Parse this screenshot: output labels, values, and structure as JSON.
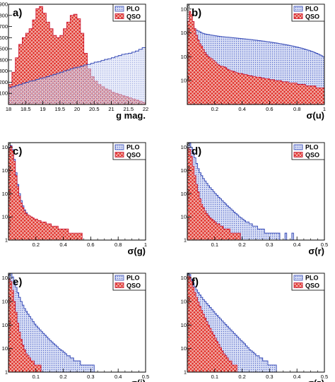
{
  "figure": {
    "colors": {
      "plo": "#3b4fb8",
      "plo_fill": "#9aa8dc",
      "qso": "#c8102e",
      "qso_fill": "#e2302a",
      "qso_hatch": "#f3c7c0"
    },
    "legend": {
      "plo_label": "PLO",
      "qso_label": "QSO"
    }
  },
  "chart_data": [
    {
      "type": "bar",
      "panel": "a)",
      "xlabel": "g mag.",
      "xlim": [
        18,
        22
      ],
      "ylim": [
        0,
        900
      ],
      "log_y": false,
      "x_ticks": [
        "18",
        "18.5",
        "19",
        "19.5",
        "20",
        "20.5",
        "21",
        "21.5",
        "22"
      ],
      "y_ticks": [
        "100",
        "200",
        "300",
        "400",
        "500",
        "600",
        "700",
        "800",
        "900"
      ],
      "bin_start": 18,
      "bin_width": 0.1,
      "series": [
        {
          "name": "PLO",
          "values": [
            150,
            160,
            170,
            180,
            190,
            200,
            210,
            215,
            225,
            235,
            240,
            250,
            260,
            270,
            280,
            290,
            300,
            310,
            320,
            330,
            335,
            345,
            355,
            360,
            370,
            380,
            385,
            395,
            405,
            410,
            420,
            430,
            440,
            450,
            455,
            460,
            470,
            480,
            495,
            510
          ]
        },
        {
          "name": "QSO",
          "values": [
            180,
            290,
            420,
            540,
            600,
            640,
            680,
            760,
            860,
            880,
            820,
            740,
            680,
            620,
            600,
            620,
            680,
            740,
            800,
            810,
            770,
            640,
            460,
            320,
            250,
            210,
            180,
            160,
            140,
            130,
            110,
            100,
            90,
            80,
            70,
            60,
            50,
            40,
            30,
            20
          ]
        }
      ]
    },
    {
      "type": "bar",
      "panel": "b)",
      "xlabel": "σ(u)",
      "xlim": [
        0,
        1
      ],
      "log_y": true,
      "log_range": [
        0,
        4.2
      ],
      "x_ticks": [
        "0.2",
        "0.4",
        "0.6",
        "0.8",
        "1"
      ],
      "y_ticks": [
        "10",
        "10",
        "10",
        "10"
      ],
      "y_tick_exps": [
        "1",
        "2",
        "3",
        "4"
      ],
      "bin_width": 0.0125,
      "series": [
        {
          "name": "PLO",
          "values": [
            400,
            1200,
            2500,
            1800,
            1500,
            1300,
            1200,
            1100,
            1000,
            950,
            900,
            870,
            850,
            820,
            800,
            780,
            760,
            740,
            720,
            700,
            690,
            680,
            670,
            660,
            650,
            640,
            630,
            620,
            610,
            600,
            590,
            580,
            570,
            560,
            550,
            540,
            530,
            520,
            510,
            500,
            490,
            480,
            470,
            460,
            450,
            440,
            430,
            420,
            410,
            400,
            390,
            380,
            370,
            360,
            350,
            340,
            330,
            320,
            310,
            300,
            290,
            280,
            270,
            260,
            250,
            240,
            230,
            220,
            210,
            200,
            190,
            180,
            170,
            160,
            150,
            140,
            130,
            120,
            110,
            100
          ]
        },
        {
          "name": "QSO",
          "values": [
            3000,
            8000,
            6000,
            3000,
            1500,
            800,
            500,
            350,
            280,
            200,
            150,
            120,
            100,
            90,
            80,
            70,
            60,
            50,
            45,
            40,
            40,
            38,
            35,
            30,
            28,
            26,
            25,
            24,
            22,
            21,
            20,
            20,
            19,
            18,
            18,
            17,
            16,
            16,
            15,
            15,
            14,
            14,
            14,
            13,
            13,
            12,
            12,
            12,
            11,
            11,
            11,
            10,
            10,
            10,
            10,
            9,
            9,
            9,
            9,
            8,
            8,
            8,
            8,
            8,
            7,
            7,
            7,
            7,
            7,
            6,
            6,
            6,
            6,
            6,
            6,
            5,
            5,
            5,
            5,
            5
          ]
        }
      ]
    },
    {
      "type": "bar",
      "panel": "c)",
      "xlabel": "σ(g)",
      "xlim": [
        0,
        1
      ],
      "log_y": true,
      "log_range": [
        0,
        4.2
      ],
      "x_ticks": [
        "0.2",
        "0.4",
        "0.6",
        "0.8",
        "1"
      ],
      "y_ticks": [
        "1",
        "10",
        "10",
        "10",
        "10"
      ],
      "y_tick_exps": [
        "",
        "",
        "2",
        "3",
        "4"
      ],
      "bin_width": 0.0125,
      "series": [
        {
          "name": "PLO",
          "values": [
            10000,
            12000,
            8000,
            3000,
            800,
            250,
            100,
            50,
            30,
            20,
            15,
            12,
            10,
            8,
            7,
            6,
            5,
            5,
            4,
            4,
            3,
            3,
            3,
            3,
            2,
            2,
            2,
            2,
            2,
            2,
            2,
            2,
            2,
            2,
            1,
            1,
            1,
            1,
            1,
            1,
            1,
            1,
            1,
            1,
            1,
            0,
            0,
            0,
            0,
            0,
            0,
            0,
            0,
            0,
            0,
            0,
            0,
            0,
            0,
            0,
            1,
            0,
            0,
            0,
            0,
            0,
            0,
            0,
            0,
            0,
            0,
            0,
            0,
            0,
            0,
            0,
            0,
            0,
            0,
            0
          ]
        },
        {
          "name": "QSO",
          "values": [
            9000,
            11000,
            7000,
            2500,
            600,
            200,
            80,
            40,
            25,
            18,
            14,
            12,
            11,
            10,
            9,
            8,
            8,
            7,
            7,
            6,
            6,
            6,
            5,
            5,
            5,
            4,
            4,
            4,
            4,
            3,
            3,
            3,
            3,
            3,
            3,
            2,
            2,
            2,
            2,
            2,
            2,
            2,
            2,
            1,
            1,
            1,
            1,
            1,
            1,
            1,
            1,
            1,
            0,
            0,
            0,
            0,
            0,
            0,
            0,
            0,
            0,
            0,
            0,
            0,
            0,
            0,
            0,
            0,
            0,
            0,
            0,
            0,
            0,
            0,
            0,
            0,
            0,
            0,
            0,
            0
          ]
        }
      ]
    },
    {
      "type": "bar",
      "panel": "d)",
      "xlabel": "σ(r)",
      "xlim": [
        0,
        0.5
      ],
      "log_y": true,
      "log_range": [
        0,
        4.2
      ],
      "x_ticks": [
        "0.1",
        "0.2",
        "0.3",
        "0.4",
        "0.5"
      ],
      "y_ticks": [
        "1",
        "10",
        "10",
        "10",
        "10"
      ],
      "y_tick_exps": [
        "",
        "",
        "2",
        "3",
        "4"
      ],
      "bin_width": 0.00625,
      "series": [
        {
          "name": "PLO",
          "values": [
            12000,
            15000,
            10000,
            6000,
            3500,
            2000,
            1200,
            800,
            600,
            450,
            350,
            280,
            220,
            180,
            150,
            120,
            100,
            85,
            70,
            60,
            50,
            42,
            36,
            30,
            26,
            22,
            19,
            16,
            14,
            12,
            10,
            9,
            8,
            7,
            6,
            6,
            5,
            5,
            4,
            4,
            4,
            3,
            3,
            3,
            3,
            2,
            2,
            2,
            2,
            2,
            2,
            2,
            2,
            2,
            1,
            1,
            1,
            2,
            1,
            1,
            1,
            2,
            1,
            1,
            1,
            1,
            1,
            1,
            1,
            1,
            1,
            1,
            1,
            1,
            1,
            1,
            1,
            1,
            1,
            1
          ]
        },
        {
          "name": "QSO",
          "values": [
            9000,
            8000,
            4000,
            1500,
            600,
            250,
            120,
            60,
            35,
            25,
            18,
            14,
            11,
            9,
            8,
            7,
            6,
            5,
            5,
            4,
            4,
            3,
            3,
            3,
            3,
            2,
            2,
            2,
            2,
            2,
            2,
            1,
            1,
            1,
            1,
            1,
            1,
            1,
            1,
            1,
            0,
            0,
            0,
            0,
            0,
            0,
            0,
            0,
            0,
            0,
            0,
            0,
            0,
            0,
            0,
            0,
            0,
            0,
            0,
            0,
            0,
            0,
            0,
            0,
            0,
            0,
            0,
            0,
            0,
            0,
            0,
            0,
            0,
            0,
            0,
            0,
            0,
            0,
            0,
            0
          ]
        }
      ]
    },
    {
      "type": "bar",
      "panel": "e)",
      "xlabel": "σ(i)",
      "xlim": [
        0,
        0.5
      ],
      "log_y": true,
      "log_range": [
        0,
        4.2
      ],
      "x_ticks": [
        "0.1",
        "0.2",
        "0.3",
        "0.4",
        "0.5"
      ],
      "y_ticks": [
        "1",
        "10",
        "10",
        "10",
        "10"
      ],
      "y_tick_exps": [
        "",
        "",
        "2",
        "3",
        "4"
      ],
      "bin_width": 0.00625,
      "series": [
        {
          "name": "PLO",
          "values": [
            14000,
            16000,
            11000,
            7000,
            4000,
            2400,
            1500,
            1000,
            700,
            500,
            380,
            290,
            230,
            180,
            140,
            110,
            90,
            75,
            62,
            52,
            44,
            37,
            31,
            26,
            22,
            19,
            16,
            14,
            12,
            10,
            9,
            8,
            7,
            6,
            5,
            5,
            4,
            4,
            3,
            3,
            3,
            3,
            2,
            2,
            2,
            2,
            2,
            2,
            2,
            2,
            1,
            1,
            1,
            1,
            1,
            1,
            1,
            1,
            1,
            1,
            1,
            1,
            1,
            1,
            1,
            1,
            1,
            1,
            1,
            1,
            1,
            1,
            1,
            1,
            1,
            1,
            1,
            1,
            1,
            1
          ]
        },
        {
          "name": "QSO",
          "values": [
            9000,
            7000,
            3000,
            1000,
            350,
            120,
            50,
            25,
            14,
            9,
            6,
            5,
            4,
            3,
            3,
            2,
            2,
            2,
            2,
            1,
            1,
            1,
            1,
            1,
            1,
            1,
            1,
            1,
            1,
            1,
            0,
            0,
            0,
            0,
            0,
            0,
            0,
            0,
            0,
            0,
            0,
            0,
            0,
            0,
            0,
            0,
            0,
            0,
            0,
            0,
            0,
            0,
            0,
            0,
            0,
            0,
            0,
            0,
            0,
            0,
            0,
            0,
            0,
            0,
            0,
            0,
            0,
            0,
            0,
            0,
            0,
            0,
            0,
            0,
            0,
            0,
            0,
            0,
            0,
            0
          ]
        }
      ]
    },
    {
      "type": "bar",
      "panel": "f)",
      "xlabel": "σ(z)",
      "xlim": [
        0,
        0.5
      ],
      "log_y": true,
      "log_range": [
        0,
        4.2
      ],
      "x_ticks": [
        "0.1",
        "0.2",
        "0.3",
        "0.4",
        "0.5"
      ],
      "y_ticks": [
        "1",
        "10",
        "10",
        "10",
        "10"
      ],
      "y_tick_exps": [
        "",
        "",
        "2",
        "3",
        "4"
      ],
      "bin_width": 0.00625,
      "series": [
        {
          "name": "PLO",
          "values": [
            15000,
            14000,
            9000,
            6000,
            4200,
            3100,
            2400,
            1900,
            1500,
            1200,
            1000,
            820,
            680,
            560,
            460,
            380,
            310,
            260,
            215,
            180,
            150,
            125,
            105,
            88,
            74,
            62,
            52,
            44,
            37,
            31,
            26,
            22,
            19,
            16,
            13,
            11,
            9,
            8,
            7,
            6,
            5,
            5,
            4,
            4,
            3,
            3,
            3,
            2,
            2,
            2,
            2,
            2,
            1,
            1,
            1,
            1,
            1,
            1,
            1,
            1,
            1,
            1,
            1,
            1,
            1,
            1,
            1,
            1,
            1,
            1,
            1,
            1,
            1,
            1,
            1,
            1,
            1,
            1,
            1,
            1
          ]
        },
        {
          "name": "QSO",
          "values": [
            12000,
            11000,
            7000,
            4000,
            2400,
            1500,
            950,
            620,
            420,
            290,
            200,
            140,
            100,
            72,
            52,
            38,
            28,
            20,
            15,
            11,
            8,
            6,
            5,
            4,
            3,
            3,
            2,
            2,
            2,
            1,
            1,
            1,
            1,
            1,
            1,
            1,
            1,
            0,
            0,
            0,
            0,
            0,
            0,
            0,
            0,
            0,
            0,
            0,
            0,
            0,
            0,
            0,
            0,
            0,
            0,
            0,
            0,
            0,
            0,
            0,
            0,
            0,
            0,
            0,
            0,
            0,
            0,
            0,
            0,
            0,
            0,
            0,
            0,
            0,
            0,
            0,
            0,
            0,
            0,
            0
          ]
        }
      ]
    }
  ]
}
